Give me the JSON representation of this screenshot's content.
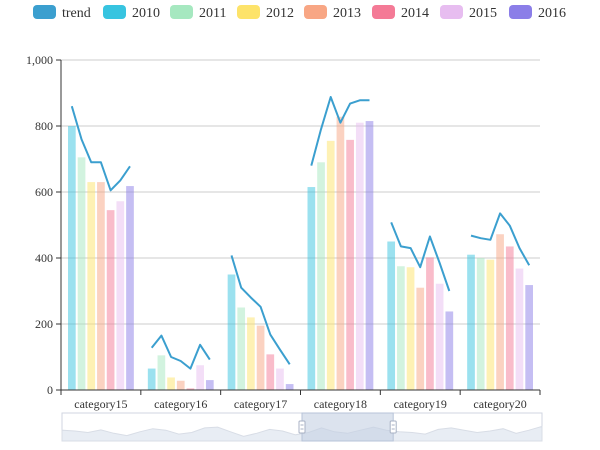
{
  "colors": {
    "trend": "#3b9fcf",
    "2010": "#37c4e0",
    "2011": "#a6e8c0",
    "2012": "#fde36a",
    "2013": "#f8a684",
    "2014": "#f47a96",
    "2015": "#e7bdf0",
    "2016": "#8b7ee8",
    "axis": "#333333",
    "grid": "#cccccc",
    "zoom_border": "#d0d6e0",
    "zoom_fill": "#e8edf4",
    "zoom_selected": "#c5d0e3",
    "zoom_handle": "#a8b2c4"
  },
  "legend": [
    "trend",
    "2010",
    "2011",
    "2012",
    "2013",
    "2014",
    "2015",
    "2016"
  ],
  "chart_data": {
    "type": "bar",
    "categories": [
      "category15",
      "category16",
      "category17",
      "category18",
      "category19",
      "category20"
    ],
    "ylim": [
      0,
      1000
    ],
    "yticks": [
      0,
      200,
      400,
      600,
      800,
      1000
    ],
    "ytick_labels": [
      "0",
      "200",
      "400",
      "600",
      "800",
      "1,000"
    ],
    "grid": true,
    "legend_position": "top",
    "series": [
      {
        "name": "2010",
        "values": [
          800,
          65,
          350,
          615,
          450,
          410
        ]
      },
      {
        "name": "2011",
        "values": [
          705,
          105,
          250,
          690,
          375,
          400
        ]
      },
      {
        "name": "2012",
        "values": [
          630,
          38,
          220,
          755,
          372,
          395
        ]
      },
      {
        "name": "2013",
        "values": [
          630,
          28,
          195,
          828,
          310,
          472
        ]
      },
      {
        "name": "2014",
        "values": [
          545,
          5,
          108,
          758,
          402,
          435
        ]
      },
      {
        "name": "2015",
        "values": [
          572,
          75,
          65,
          810,
          322,
          368
        ]
      },
      {
        "name": "2016",
        "values": [
          618,
          30,
          18,
          815,
          238,
          318
        ]
      }
    ],
    "trend": [
      [
        860,
        760,
        690,
        690,
        605,
        635,
        678
      ],
      [
        128,
        165,
        100,
        88,
        65,
        137,
        92
      ],
      [
        408,
        310,
        280,
        252,
        168,
        122,
        78
      ],
      [
        680,
        790,
        888,
        810,
        868,
        878,
        null
      ],
      [
        508,
        435,
        430,
        372,
        465,
        385,
        300
      ],
      [
        468,
        460,
        455,
        535,
        498,
        430,
        378
      ]
    ]
  },
  "zoom": {
    "start": 0.5,
    "end": 0.69,
    "preview": [
      0.7,
      0.65,
      0.55,
      0.72,
      0.5,
      0.35,
      0.6,
      0.8,
      0.7,
      0.45,
      0.55,
      0.85,
      0.9,
      0.6,
      0.3,
      0.5,
      0.75,
      0.65,
      0.4,
      0.55,
      0.85,
      0.6,
      0.5,
      0.7,
      0.9,
      0.7,
      0.6,
      0.55,
      0.45,
      0.75,
      0.85,
      0.7,
      0.55,
      0.65,
      0.8,
      0.5,
      0.7,
      0.95
    ]
  }
}
